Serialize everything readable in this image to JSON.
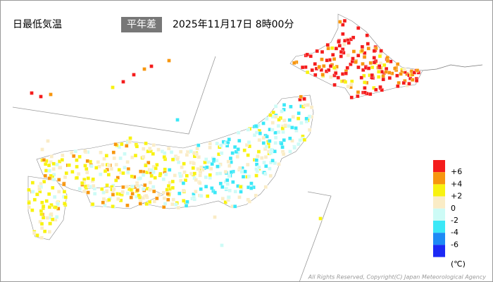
{
  "header": {
    "title": "日最低気温",
    "badge": "平年差",
    "datetime": "2025年11月17日 8時00分"
  },
  "legend": {
    "labels": [
      "+6",
      "+4",
      "+2",
      "0",
      "-2",
      "-4",
      "-6"
    ],
    "colors": [
      "#f41c1c",
      "#f7960f",
      "#f8f210",
      "#faecc6",
      "#cdfbf6",
      "#3be8f7",
      "#1e8af5",
      "#1c29f5"
    ],
    "unit": "(℃)"
  },
  "footer": {
    "copyright": "All Rights Reserved, Copyright(C) Japan Meteorological Agency"
  }
}
